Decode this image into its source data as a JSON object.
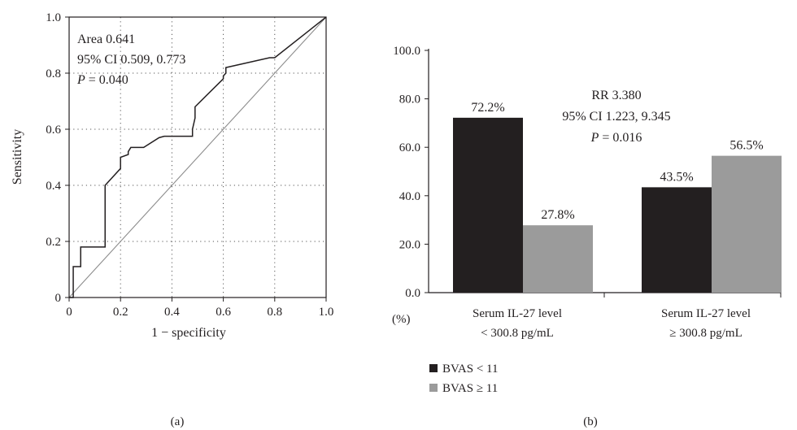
{
  "panel_a_label": "(a)",
  "panel_b_label": "(b)",
  "chart_data": [
    {
      "type": "line",
      "xlabel": "1 − specificity",
      "ylabel": "Sensitivity",
      "xlim": [
        0,
        1
      ],
      "ylim": [
        0,
        1
      ],
      "x_ticks": [
        "0",
        "0.2",
        "0.4",
        "0.6",
        "0.8",
        "1.0"
      ],
      "y_ticks": [
        "0",
        "0.2",
        "0.4",
        "0.6",
        "0.8",
        "1.0"
      ],
      "grid": "dotted",
      "annotations": {
        "area": "Area 0.641",
        "ci": "95% CI 0.509, 0.773",
        "p_letter": "P",
        "p_value": " = 0.040"
      },
      "series": [
        {
          "x": [
            0.0,
            0.016,
            0.016,
            0.045,
            0.045,
            0.14,
            0.14,
            0.2,
            0.2,
            0.23,
            0.23,
            0.24,
            0.29,
            0.35,
            0.37,
            0.48,
            0.48,
            0.49,
            0.49,
            0.6,
            0.6,
            0.61,
            0.61,
            0.78,
            0.8,
            1.0
          ],
          "y": [
            0.0,
            0.0,
            0.11,
            0.11,
            0.18,
            0.18,
            0.4,
            0.46,
            0.5,
            0.51,
            0.52,
            0.535,
            0.535,
            0.57,
            0.575,
            0.575,
            0.6,
            0.64,
            0.68,
            0.78,
            0.79,
            0.8,
            0.82,
            0.855,
            0.855,
            1.0
          ]
        },
        {
          "x": [
            0,
            1
          ],
          "y": [
            0,
            1
          ]
        }
      ]
    },
    {
      "type": "bar",
      "categories": [
        [
          "Serum IL-27 level",
          "< 300.8 pg/mL"
        ],
        [
          "Serum IL-27 level",
          "≥ 300.8 pg/mL"
        ]
      ],
      "ylim": [
        0,
        100
      ],
      "y_ticks": [
        "0.0",
        "20.0",
        "40.0",
        "60.0",
        "80.0",
        "100.0"
      ],
      "unit_label": "(%)",
      "series": [
        {
          "name": "BVAS < 11",
          "values": [
            72.2,
            43.5
          ],
          "labels": [
            "72.2%",
            "43.5%"
          ],
          "color": "#231f20"
        },
        {
          "name": "BVAS ≥ 11",
          "values": [
            27.8,
            56.5
          ],
          "labels": [
            "27.8%",
            "56.5%"
          ],
          "color": "#9b9b9b"
        }
      ],
      "annotations": {
        "rr": "RR 3.380",
        "ci": "95% CI 1.223, 9.345",
        "p_letter": "P",
        "p_value": " = 0.016"
      },
      "legend_position": "bottom-left"
    }
  ]
}
